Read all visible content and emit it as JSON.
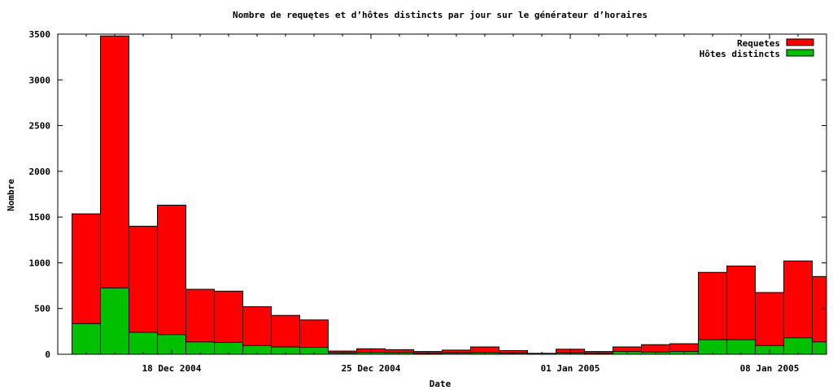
{
  "chart_data": {
    "type": "bar",
    "title": "Nombre de requętes et d’hôtes distincts par jour sur le générateur d’horaires",
    "xlabel": "Date",
    "ylabel": "Nombre",
    "ylim": [
      0,
      3500
    ],
    "y_ticks": [
      0,
      500,
      1000,
      1500,
      2000,
      2500,
      3000,
      3500
    ],
    "x_tick_labels": [
      "18 Dec 2004",
      "25 Dec 2004",
      "01 Jan 2005",
      "08 Jan 2005"
    ],
    "x_tick_dates": [
      "2004-12-18",
      "2004-12-25",
      "2005-01-01",
      "2005-01-08"
    ],
    "x_range": [
      "2004-12-14",
      "2005-01-10"
    ],
    "dates": [
      "2004-12-15",
      "2004-12-16",
      "2004-12-17",
      "2004-12-18",
      "2004-12-19",
      "2004-12-20",
      "2004-12-21",
      "2004-12-22",
      "2004-12-23",
      "2004-12-24",
      "2004-12-25",
      "2004-12-26",
      "2004-12-27",
      "2004-12-28",
      "2004-12-29",
      "2004-12-30",
      "2004-12-31",
      "2005-01-01",
      "2005-01-02",
      "2005-01-03",
      "2005-01-04",
      "2005-01-05",
      "2005-01-06",
      "2005-01-07",
      "2005-01-08",
      "2005-01-09",
      "2005-01-10"
    ],
    "series": [
      {
        "name": "Requetes",
        "color": "#ff0000",
        "values": [
          1535,
          3480,
          1400,
          1630,
          710,
          690,
          520,
          425,
          375,
          35,
          60,
          50,
          30,
          45,
          80,
          40,
          10,
          55,
          30,
          80,
          105,
          115,
          895,
          965,
          675,
          1020,
          850
        ]
      },
      {
        "name": "Hôtes distincts",
        "color": "#00c000",
        "values": [
          335,
          725,
          240,
          215,
          135,
          130,
          95,
          80,
          75,
          15,
          20,
          18,
          10,
          15,
          18,
          12,
          5,
          15,
          10,
          30,
          25,
          30,
          160,
          160,
          95,
          180,
          135
        ]
      }
    ],
    "grid": false,
    "legend_position": "top-right"
  }
}
